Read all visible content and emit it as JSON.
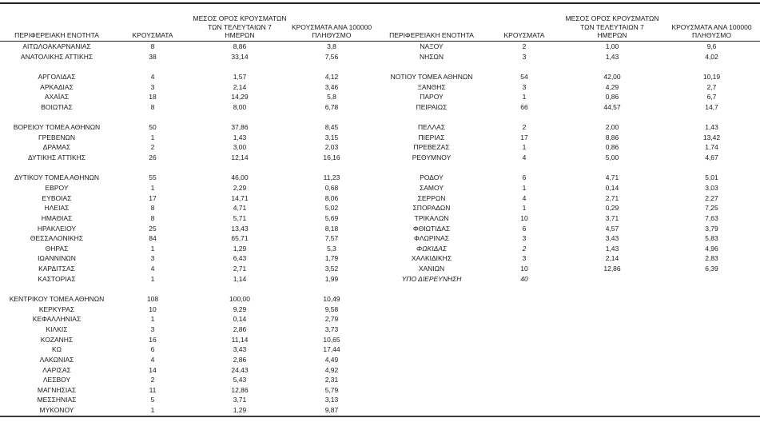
{
  "table": {
    "headers": {
      "region": "ΠΕΡΙΦΕΡΕΙΑΚΗ ΕΝΟΤΗΤΑ",
      "cases": "ΚΡΟΥΣΜΑΤΑ",
      "avg7": "ΜΕΣΟΣ ΟΡΟΣ ΚΡΟΥΣΜΑΤΩΝ\nΤΩΝ ΤΕΛΕΥΤΑΙΩΝ 7\nΗΜΕΡΩΝ",
      "per100k": "ΚΡΟΥΣΜΑΤΑ ΑΝΑ 100000\nΠΛΗΘΥΣΜΟ"
    },
    "row_count": 37,
    "left_rows": [
      {
        "region": "ΑΙΤΩΛΟΑΚΑΡΝΑΝΙΑΣ",
        "cases": "8",
        "avg7": "8,86",
        "per100k": "3,8"
      },
      {
        "region": "ΑΝΑΤΟΛΙΚΗΣ ΑΤΤΙΚΗΣ",
        "cases": "38",
        "avg7": "33,14",
        "per100k": "7,56"
      },
      null,
      {
        "region": "ΑΡΓΟΛΙΔΑΣ",
        "cases": "4",
        "avg7": "1,57",
        "per100k": "4,12"
      },
      {
        "region": "ΑΡΚΑΔΙΑΣ",
        "cases": "3",
        "avg7": "2,14",
        "per100k": "3,46"
      },
      {
        "region": "ΑΧΑΪΑΣ",
        "cases": "18",
        "avg7": "14,29",
        "per100k": "5,8"
      },
      {
        "region": "ΒΟΙΩΤΙΑΣ",
        "cases": "8",
        "avg7": "8,00",
        "per100k": "6,78"
      },
      null,
      {
        "region": "ΒΟΡΕΙΟΥ ΤΟΜΕΑ ΑΘΗΝΩΝ",
        "cases": "50",
        "avg7": "37,86",
        "per100k": "8,45"
      },
      {
        "region": "ΓΡΕΒΕΝΩΝ",
        "cases": "1",
        "avg7": "1,43",
        "per100k": "3,15"
      },
      {
        "region": "ΔΡΑΜΑΣ",
        "cases": "2",
        "avg7": "3,00",
        "per100k": "2,03"
      },
      {
        "region": "ΔΥΤΙΚΗΣ ΑΤΤΙΚΗΣ",
        "cases": "26",
        "avg7": "12,14",
        "per100k": "16,16"
      },
      null,
      {
        "region": "ΔΥΤΙΚΟΥ ΤΟΜΕΑ ΑΘΗΝΩΝ",
        "cases": "55",
        "avg7": "46,00",
        "per100k": "11,23"
      },
      {
        "region": "ΕΒΡΟΥ",
        "cases": "1",
        "avg7": "2,29",
        "per100k": "0,68"
      },
      {
        "region": "ΕΥΒΟΙΑΣ",
        "cases": "17",
        "avg7": "14,71",
        "per100k": "8,06"
      },
      {
        "region": "ΗΛΕΙΑΣ",
        "cases": "8",
        "avg7": "4,71",
        "per100k": "5,02"
      },
      {
        "region": "ΗΜΑΘΙΑΣ",
        "cases": "8",
        "avg7": "5,71",
        "per100k": "5,69"
      },
      {
        "region": "ΗΡΑΚΛΕΙΟΥ",
        "cases": "25",
        "avg7": "13,43",
        "per100k": "8,18"
      },
      {
        "region": "ΘΕΣΣΑΛΟΝΙΚΗΣ",
        "cases": "84",
        "avg7": "65,71",
        "per100k": "7,57"
      },
      {
        "region": "ΘΗΡΑΣ",
        "cases": "1",
        "avg7": "1,29",
        "per100k": "5,3"
      },
      {
        "region": "ΙΩΑΝΝΙΝΩΝ",
        "cases": "3",
        "avg7": "6,43",
        "per100k": "1,79"
      },
      {
        "region": "ΚΑΡΔΙΤΣΑΣ",
        "cases": "4",
        "avg7": "2,71",
        "per100k": "3,52"
      },
      {
        "region": "ΚΑΣΤΟΡΙΑΣ",
        "cases": "1",
        "avg7": "1,14",
        "per100k": "1,99"
      },
      null,
      {
        "region": "ΚΕΝΤΡΙΚΟΥ ΤΟΜΕΑ ΑΘΗΝΩΝ",
        "cases": "108",
        "avg7": "100,00",
        "per100k": "10,49"
      },
      {
        "region": "ΚΕΡΚΥΡΑΣ",
        "cases": "10",
        "avg7": "9,29",
        "per100k": "9,58"
      },
      {
        "region": "ΚΕΦΑΛΛΗΝΙΑΣ",
        "cases": "1",
        "avg7": "0,14",
        "per100k": "2,79"
      },
      {
        "region": "ΚΙΛΚΙΣ",
        "cases": "3",
        "avg7": "2,86",
        "per100k": "3,73"
      },
      {
        "region": "ΚΟΖΑΝΗΣ",
        "cases": "16",
        "avg7": "11,14",
        "per100k": "10,65"
      },
      {
        "region": "ΚΩ",
        "cases": "6",
        "avg7": "3,43",
        "per100k": "17,44"
      },
      {
        "region": "ΛΑΚΩΝΙΑΣ",
        "cases": "4",
        "avg7": "2,86",
        "per100k": "4,49"
      },
      {
        "region": "ΛΑΡΙΣΑΣ",
        "cases": "14",
        "avg7": "24,43",
        "per100k": "4,92"
      },
      {
        "region": "ΛΕΣΒΟΥ",
        "cases": "2",
        "avg7": "5,43",
        "per100k": "2,31"
      },
      {
        "region": "ΜΑΓΝΗΣΙΑΣ",
        "cases": "11",
        "avg7": "12,86",
        "per100k": "5,79"
      },
      {
        "region": "ΜΕΣΣΗΝΙΑΣ",
        "cases": "5",
        "avg7": "3,71",
        "per100k": "3,13"
      },
      {
        "region": "ΜΥΚΟΝΟΥ",
        "cases": "1",
        "avg7": "1,29",
        "per100k": "9,87"
      }
    ],
    "right_rows": [
      {
        "region": "ΝΑΞΟΥ",
        "cases": "2",
        "avg7": "1,00",
        "per100k": "9,6"
      },
      {
        "region": "ΝΗΣΩΝ",
        "cases": "3",
        "avg7": "1,43",
        "per100k": "4,02"
      },
      null,
      {
        "region": "ΝΟΤΙΟΥ ΤΟΜΕΑ ΑΘΗΝΩΝ",
        "cases": "54",
        "avg7": "42,00",
        "per100k": "10,19"
      },
      {
        "region": "ΞΑΝΘΗΣ",
        "cases": "3",
        "avg7": "4,29",
        "per100k": "2,7"
      },
      {
        "region": "ΠΑΡΟΥ",
        "cases": "1",
        "avg7": "0,86",
        "per100k": "6,7"
      },
      {
        "region": "ΠΕΙΡΑΙΩΣ",
        "cases": "66",
        "avg7": "44,57",
        "per100k": "14,7"
      },
      null,
      {
        "region": "ΠΕΛΛΑΣ",
        "cases": "2",
        "avg7": "2,00",
        "per100k": "1,43"
      },
      {
        "region": "ΠΙΕΡΙΑΣ",
        "cases": "17",
        "avg7": "8,86",
        "per100k": "13,42"
      },
      {
        "region": "ΠΡΕΒΕΖΑΣ",
        "cases": "1",
        "avg7": "0,86",
        "per100k": "1,74"
      },
      {
        "region": "ΡΕΘΥΜΝΟΥ",
        "cases": "4",
        "avg7": "5,00",
        "per100k": "4,67"
      },
      null,
      {
        "region": "ΡΟΔΟΥ",
        "cases": "6",
        "avg7": "4,71",
        "per100k": "5,01"
      },
      {
        "region": "ΣΑΜΟΥ",
        "cases": "1",
        "avg7": "0,14",
        "per100k": "3,03"
      },
      {
        "region": "ΣΕΡΡΩΝ",
        "cases": "4",
        "avg7": "2,71",
        "per100k": "2,27"
      },
      {
        "region": "ΣΠΟΡΑΔΩΝ",
        "cases": "1",
        "avg7": "0,29",
        "per100k": "7,25"
      },
      {
        "region": "ΤΡΙΚΑΛΩΝ",
        "cases": "10",
        "avg7": "3,71",
        "per100k": "7,63"
      },
      {
        "region": "ΦΘΙΩΤΙΔΑΣ",
        "cases": "6",
        "avg7": "4,57",
        "per100k": "3,79"
      },
      {
        "region": "ΦΛΩΡΙΝΑΣ",
        "cases": "3",
        "avg7": "3,43",
        "per100k": "5,83"
      },
      {
        "region": "ΦΩΚΙΔΑΣ",
        "cases": "2",
        "avg7": "1,43",
        "per100k": "4,96",
        "italic": true
      },
      {
        "region": "ΧΑΛΚΙΔΙΚΗΣ",
        "cases": "3",
        "avg7": "2,14",
        "per100k": "2,83"
      },
      {
        "region": "ΧΑΝΙΩΝ",
        "cases": "10",
        "avg7": "12,86",
        "per100k": "6,39"
      },
      {
        "region": "ΥΠΟ ΔΙΕΡΕΥΝΗΣΗ",
        "cases": "40",
        "avg7": "",
        "per100k": "",
        "italic": true
      }
    ]
  },
  "colors": {
    "text": "#1a1a1a",
    "rule_top": "#222222",
    "rule_bottom": "#3a3a3a",
    "background": "#ffffff"
  }
}
